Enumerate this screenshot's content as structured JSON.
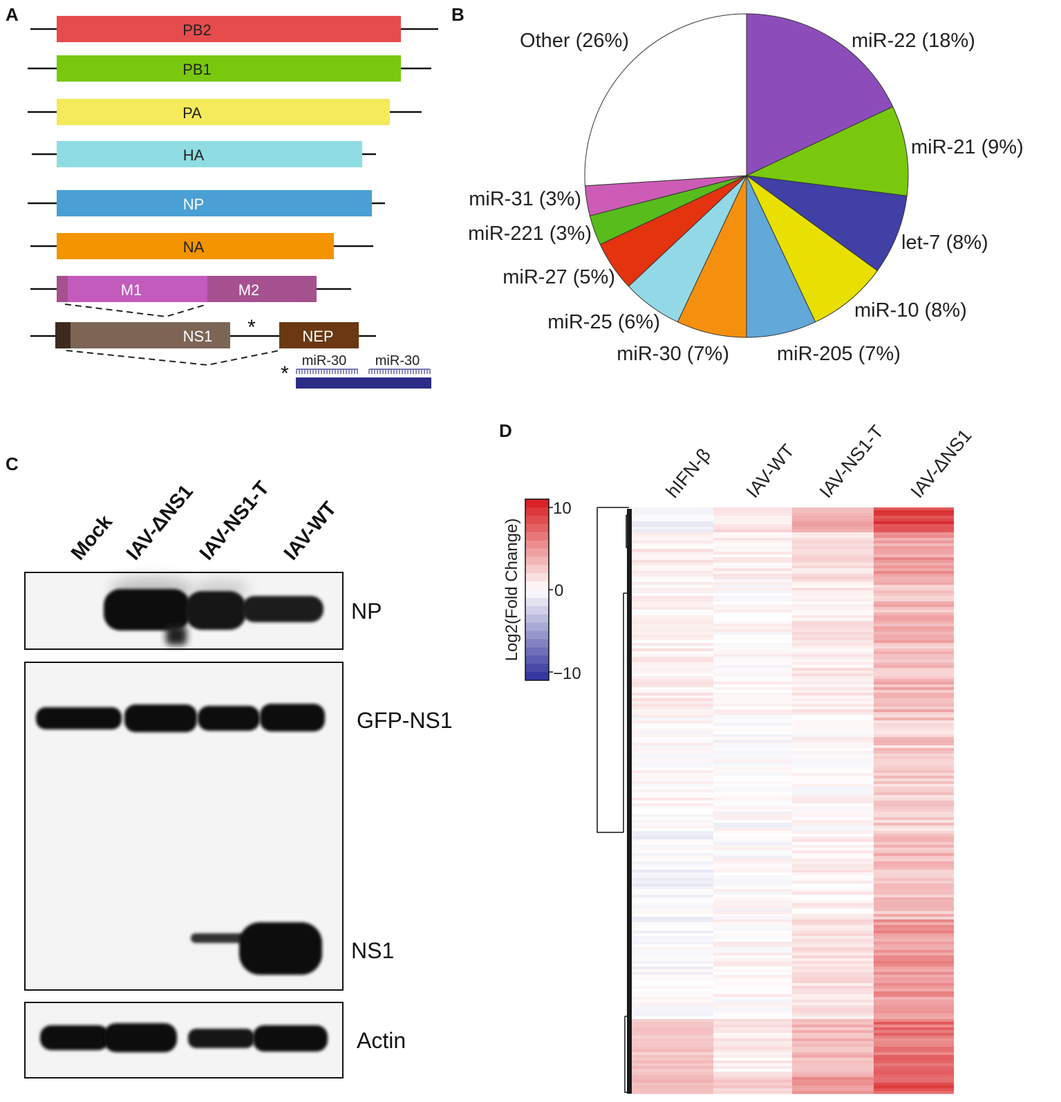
{
  "panels": {
    "a": "A",
    "b": "B",
    "c": "C",
    "d": "D"
  },
  "genome": {
    "segments": [
      {
        "name": "PB2",
        "color": "#e74c4c",
        "text_color": "#222222"
      },
      {
        "name": "PB1",
        "color": "#79c80e",
        "text_color": "#222222"
      },
      {
        "name": "PA",
        "color": "#f5ea5a",
        "text_color": "#222222"
      },
      {
        "name": "HA",
        "color": "#8fdde2",
        "text_color": "#222222"
      },
      {
        "name": "NP",
        "color": "#4a9fd4",
        "text_color": "#ffffff"
      },
      {
        "name": "NA",
        "color": "#f39400",
        "text_color": "#222222"
      }
    ],
    "m_segment": {
      "m1": "M1",
      "m2": "M2",
      "m1_color": "#c35bbd",
      "m2_color": "#a5508f",
      "cap_color": "#a5508f"
    },
    "ns_segment": {
      "ns1": "NS1",
      "nep": "NEP",
      "ns1_color": "#7c6555",
      "nep_color": "#6a3812",
      "cap_color": "#3d2a1e"
    },
    "asterisk": "*",
    "mir_sites": [
      "miR-30",
      "miR-30"
    ],
    "mir_bar_color": "#2c2c86"
  },
  "chart_data": {
    "type": "pie",
    "slices": [
      {
        "label": "miR-22 (18%)",
        "value": 18,
        "color": "#8c4dbb"
      },
      {
        "label": "miR-21 (9%)",
        "value": 9,
        "color": "#79c80e"
      },
      {
        "label": "let-7 (8%)",
        "value": 8,
        "color": "#4040a6"
      },
      {
        "label": "miR-10 (8%)",
        "value": 8,
        "color": "#e8e000"
      },
      {
        "label": "miR-205 (7%)",
        "value": 7,
        "color": "#62a8d8"
      },
      {
        "label": "miR-30 (7%)",
        "value": 7,
        "color": "#f5900f"
      },
      {
        "label": "miR-25 (6%)",
        "value": 6,
        "color": "#93d8e6"
      },
      {
        "label": "miR-27 (5%)",
        "value": 5,
        "color": "#e3330f"
      },
      {
        "label": "miR-221 (3%)",
        "value": 3,
        "color": "#58bc1c"
      },
      {
        "label": "miR-31 (3%)",
        "value": 3,
        "color": "#cc5cb5"
      },
      {
        "label": "Other (26%)",
        "value": 26,
        "color": "#ffffff"
      }
    ],
    "start": "12 o'clock",
    "direction": "clockwise"
  },
  "blot": {
    "lanes": [
      "Mock",
      "IAV-ΔNS1",
      "IAV-NS1-T",
      "IAV-WT"
    ],
    "bands": [
      "NP",
      "GFP-NS1",
      "NS1",
      "Actin"
    ]
  },
  "heatmap": {
    "columns": [
      "hIFN-β",
      "IAV-WT",
      "IAV-NS1-T",
      "IAV-ΔNS1"
    ],
    "colorbar": {
      "title": "Log2(Fold Change)",
      "ticks": [
        "10",
        "0",
        "−10"
      ],
      "max": 10,
      "min": -10,
      "high_color": "#d7191c",
      "mid_color": "#ffffff",
      "low_color": "#2c2c9a"
    }
  }
}
